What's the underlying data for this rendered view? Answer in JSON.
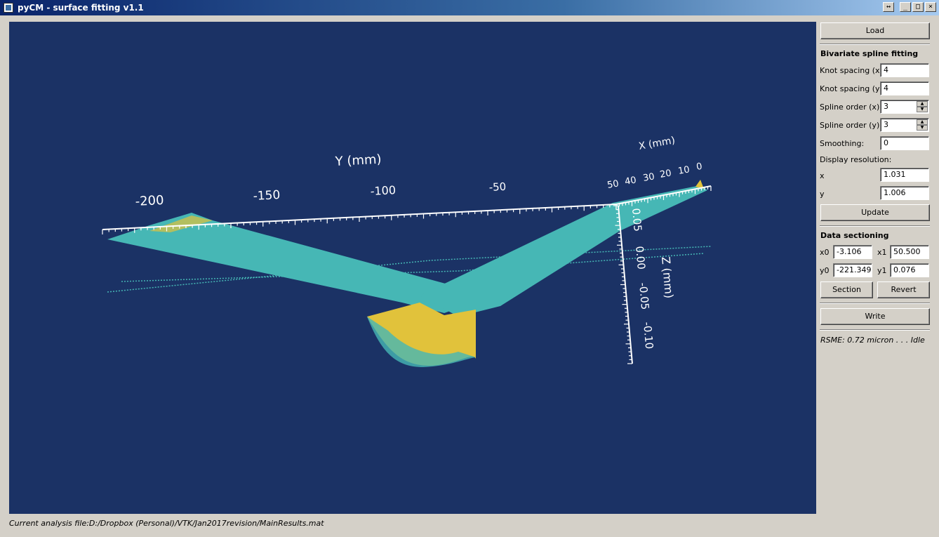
{
  "window": {
    "title": "pyCM - surface fitting v1.1",
    "controls": {
      "extra": "↔",
      "minimize": "_",
      "maximize": "□",
      "close": "×"
    }
  },
  "viewport": {
    "background": "#1b3265",
    "surface_colors": {
      "top": "#46b7b5",
      "underside": "#e1c23b"
    },
    "axes": {
      "y_title": "Y (mm)",
      "y_ticks": [
        "-200",
        "-150",
        "-100",
        "-50"
      ],
      "x_title": "X (mm)",
      "x_ticks": [
        "50",
        "40",
        "30",
        "20",
        "10",
        "0"
      ],
      "z_title": "Z (mm)",
      "z_ticks": [
        "0.05",
        "0.00",
        "-0.05",
        "-0.10"
      ]
    }
  },
  "panel": {
    "load_label": "Load",
    "spline_title": "Bivariate spline fitting",
    "knot_x_label": "Knot spacing (x)",
    "knot_x_value": "4",
    "knot_y_label": "Knot spacing (y)",
    "knot_y_value": "4",
    "order_x_label": "Spline order (x)",
    "order_x_value": "3",
    "order_y_label": "Spline order (y)",
    "order_y_value": "3",
    "smoothing_label": "Smoothing:",
    "smoothing_value": "0",
    "display_res_label": "Display resolution:",
    "res_x_label": "x",
    "res_x_value": "1.031",
    "res_y_label": "y",
    "res_y_value": "1.006",
    "update_label": "Update",
    "section_title": "Data sectioning",
    "x0_label": "x0",
    "x0_value": "-3.106",
    "x1_label": "x1",
    "x1_value": "50.500",
    "y0_label": "y0",
    "y0_value": "-221.349",
    "y1_label": "y1",
    "y1_value": "0.076",
    "section_btn": "Section",
    "revert_btn": "Revert",
    "write_btn": "Write",
    "status": "RSME: 0.72 micron . . . Idle"
  },
  "footer": {
    "analysis_file": "Current analysis file:D:/Dropbox (Personal)/VTK/Jan2017revision/MainResults.mat"
  }
}
